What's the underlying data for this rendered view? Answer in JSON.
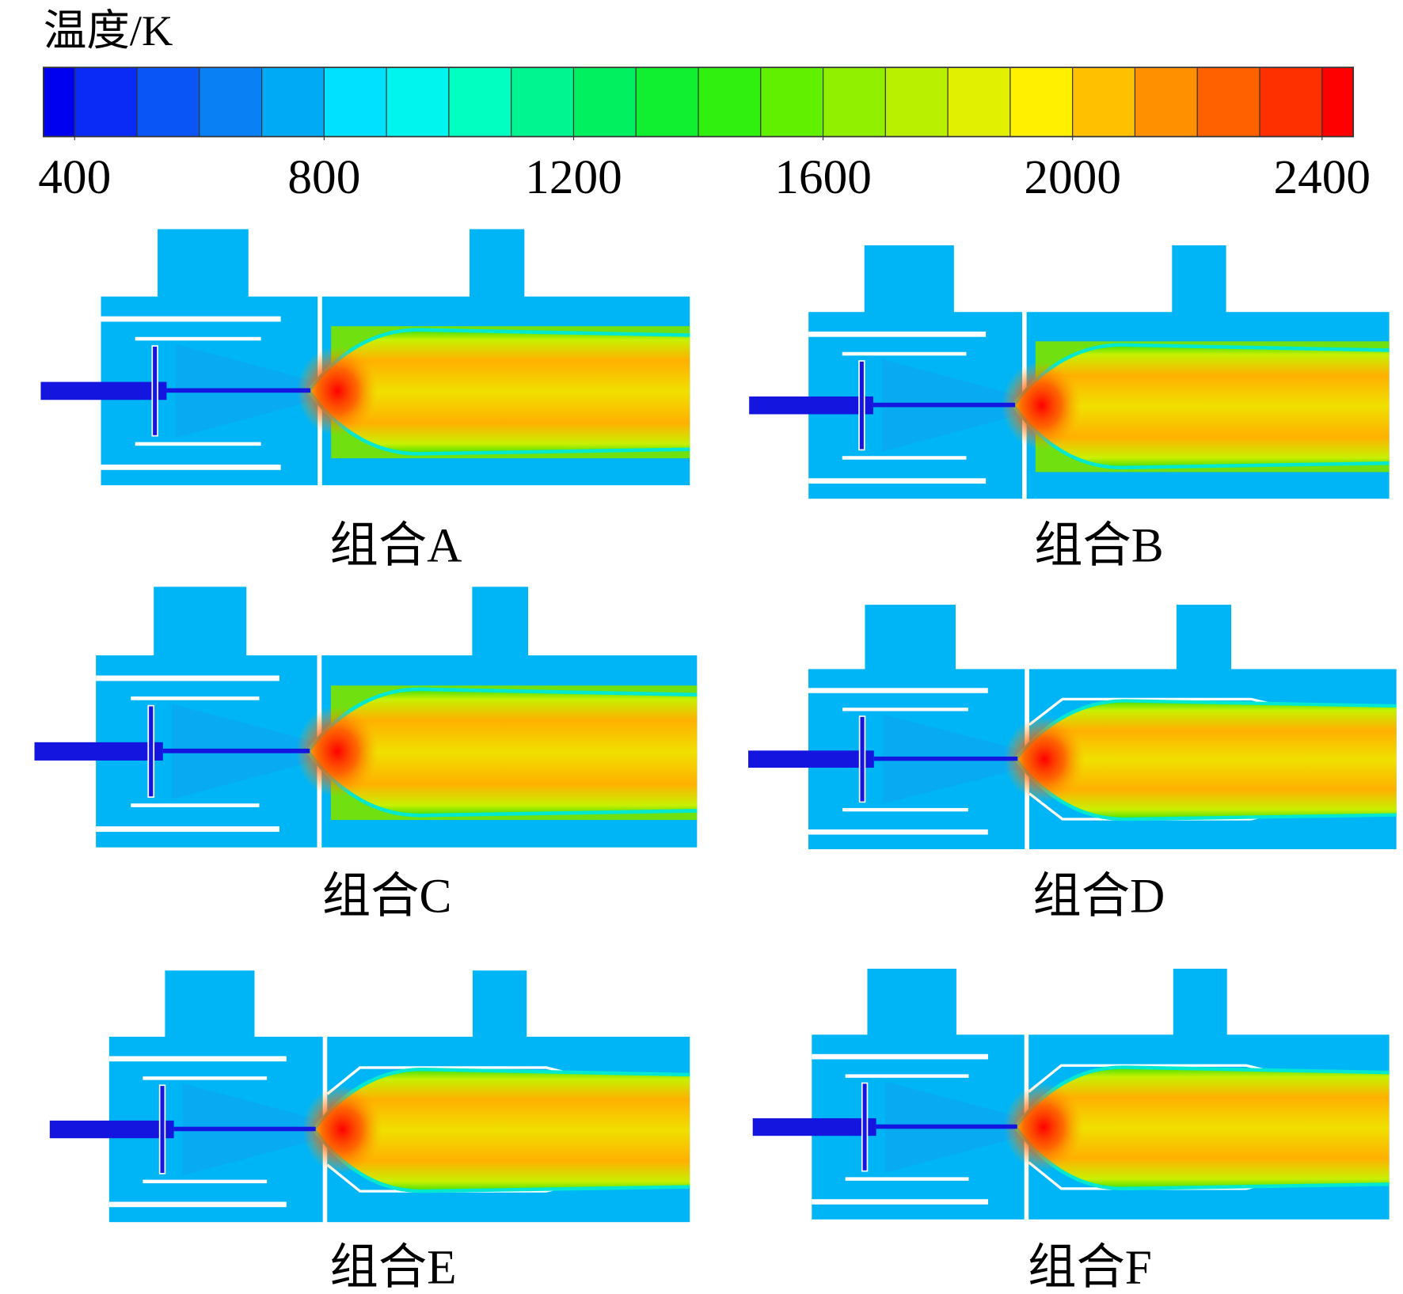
{
  "colorbar": {
    "title": "温度/K",
    "range": [
      350,
      2450
    ],
    "ticks": [
      400,
      800,
      1200,
      1600,
      2000,
      2400
    ],
    "levels": [
      350,
      400,
      500,
      600,
      700,
      800,
      900,
      1000,
      1100,
      1200,
      1300,
      1400,
      1500,
      1600,
      1700,
      1800,
      1900,
      2000,
      2100,
      2200,
      2300,
      2400,
      2450
    ],
    "colors": [
      "#0000f0",
      "#0a2af5",
      "#0a55f5",
      "#0a80f5",
      "#00aaf5",
      "#00e0ff",
      "#00f5ee",
      "#00ffc0",
      "#00f590",
      "#00f060",
      "#10f030",
      "#30f010",
      "#60f000",
      "#90f000",
      "#b8f000",
      "#e0f000",
      "#fff000",
      "#ffc000",
      "#ff9000",
      "#ff6000",
      "#ff3000",
      "#ff0000"
    ]
  },
  "panels": [
    {
      "label": "组合A"
    },
    {
      "label": "组合B"
    },
    {
      "label": "组合C"
    },
    {
      "label": "组合D"
    },
    {
      "label": "组合E"
    },
    {
      "label": "组合F"
    }
  ]
}
